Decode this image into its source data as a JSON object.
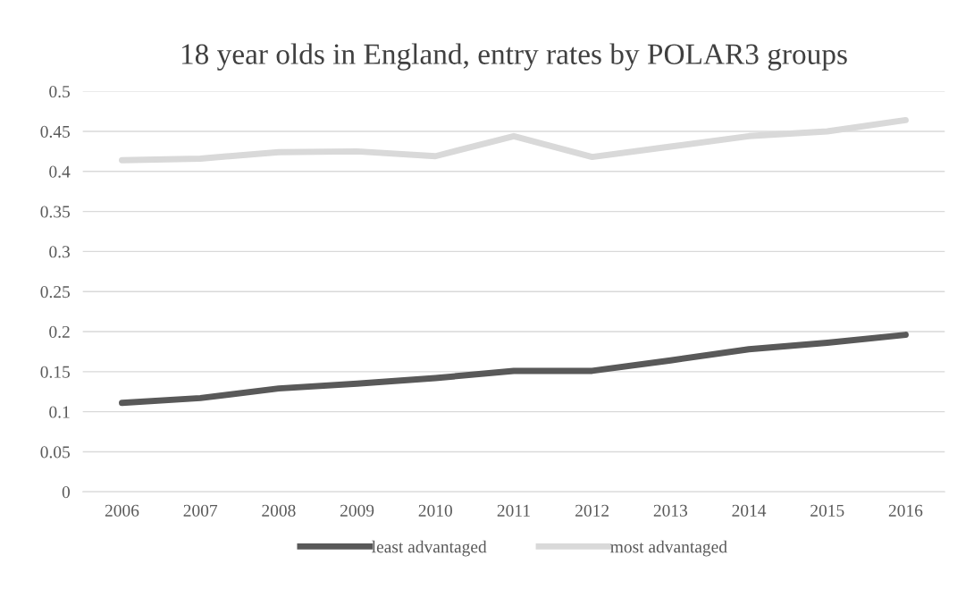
{
  "chart_data": {
    "type": "line",
    "title": "18 year olds in England, entry rates by POLAR3 groups",
    "categories": [
      "2006",
      "2007",
      "2008",
      "2009",
      "2010",
      "2011",
      "2012",
      "2013",
      "2014",
      "2015",
      "2016"
    ],
    "series": [
      {
        "name": "least advantaged",
        "color": "#595959",
        "values": [
          0.111,
          0.117,
          0.129,
          0.135,
          0.142,
          0.151,
          0.151,
          0.164,
          0.178,
          0.186,
          0.196
        ]
      },
      {
        "name": "most advantaged",
        "color": "#d9d9d9",
        "values": [
          0.414,
          0.416,
          0.424,
          0.425,
          0.419,
          0.444,
          0.418,
          0.431,
          0.444,
          0.45,
          0.464
        ]
      }
    ],
    "ylim": [
      0,
      0.5
    ],
    "yticks": [
      0,
      0.05,
      0.1,
      0.15,
      0.2,
      0.25,
      0.3,
      0.35,
      0.4,
      0.45,
      0.5
    ],
    "grid": "y",
    "legend": "bottom",
    "marker": "none",
    "line_style": "solid"
  }
}
